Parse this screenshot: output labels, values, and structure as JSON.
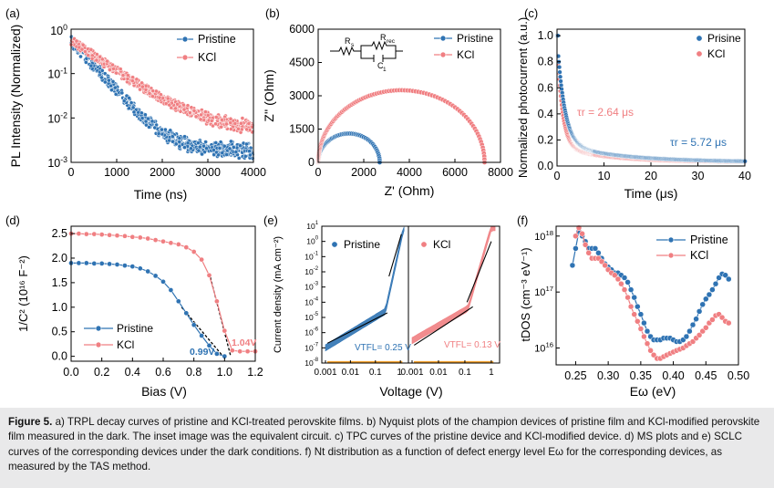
{
  "colors": {
    "pristine": "#2f73b3",
    "kcl": "#f07f82",
    "fit": "#000000",
    "accent_orange": "#f2a12e"
  },
  "chart_data": [
    {
      "panel": "(a)",
      "type": "scatter",
      "xlabel": "Time (ns)",
      "ylabel": "PL Intensity (Normalized)",
      "xlim": [
        0,
        4000
      ],
      "ylim": [
        0.001,
        1
      ],
      "yscale": "log",
      "xticks": [
        "0",
        "1000",
        "2000",
        "3000",
        "4000"
      ],
      "yticks": [
        "10",
        "10",
        "10",
        "10"
      ],
      "ytick_exps": [
        "0",
        "-1",
        "-2",
        "-3"
      ],
      "series": [
        {
          "name": "Pristine",
          "tau_ns": 380,
          "floor": 0.0015,
          "x_end": 4000
        },
        {
          "name": "KCl",
          "tau_ns": 620,
          "floor": 0.0045,
          "x_end": 4000
        }
      ]
    },
    {
      "panel": "(b)",
      "type": "scatter",
      "xlabel": "Z' (Ohm)",
      "ylabel": "Z'' (Ohm)",
      "xlim": [
        0,
        8000
      ],
      "ylim": [
        0,
        6000
      ],
      "xticks": [
        "0",
        "2000",
        "4000",
        "6000",
        "8000"
      ],
      "yticks": [
        "0",
        "1500",
        "3000",
        "4500",
        "6000"
      ],
      "inset_labels": [
        "R",
        "s",
        "R",
        "rec",
        "C",
        "1"
      ],
      "series": [
        {
          "name": "Pristine",
          "arc_from": 0,
          "arc_to": 2700,
          "peak": 1300
        },
        {
          "name": "KCl",
          "arc_from": 0,
          "arc_to": 7300,
          "peak": 3250
        }
      ]
    },
    {
      "panel": "(c)",
      "type": "scatter",
      "xlabel": "Time (μs)",
      "ylabel": "Normalized photocurrent (a.u.)",
      "xlim": [
        0,
        40
      ],
      "ylim": [
        0,
        1.05
      ],
      "xticks": [
        "0",
        "10",
        "20",
        "30",
        "40"
      ],
      "yticks": [
        "0.0",
        "0.2",
        "0.4",
        "0.6",
        "0.8",
        "1.0"
      ],
      "annotations": [
        "τr = 2.64 μs",
        "τr = 5.72 μs"
      ],
      "series": [
        {
          "name": "Prisine",
          "tau_us": 5.72
        },
        {
          "name": "KCl",
          "tau_us": 2.64
        }
      ]
    },
    {
      "panel": "(d)",
      "type": "line",
      "xlabel": "Bias (V)",
      "ylabel": "1/C² (10¹⁶ F⁻²)",
      "xlim": [
        0,
        1.2
      ],
      "ylim": [
        -0.1,
        2.65
      ],
      "xticks": [
        "0.0",
        "0.2",
        "0.4",
        "0.6",
        "0.8",
        "1.0",
        "1.2"
      ],
      "yticks": [
        "0.0",
        "0.5",
        "1.0",
        "1.5",
        "2.0",
        "2.5"
      ],
      "annotations": [
        "0.99V",
        "1.04V"
      ],
      "series": [
        {
          "name": "Pristine",
          "x": [
            0.0,
            0.05,
            0.1,
            0.15,
            0.2,
            0.25,
            0.3,
            0.35,
            0.4,
            0.45,
            0.5,
            0.55,
            0.6,
            0.65,
            0.7,
            0.75,
            0.8,
            0.85,
            0.9,
            0.95,
            1.0
          ],
          "y": [
            1.9,
            1.9,
            1.9,
            1.89,
            1.89,
            1.88,
            1.87,
            1.85,
            1.83,
            1.79,
            1.73,
            1.64,
            1.52,
            1.35,
            1.12,
            0.88,
            0.64,
            0.42,
            0.22,
            0.05,
            0.0
          ]
        },
        {
          "name": "KCl",
          "x": [
            0.0,
            0.05,
            0.1,
            0.15,
            0.2,
            0.25,
            0.3,
            0.35,
            0.4,
            0.45,
            0.5,
            0.55,
            0.6,
            0.65,
            0.7,
            0.75,
            0.8,
            0.85,
            0.9,
            0.95,
            1.0,
            1.05,
            1.1,
            1.15,
            1.2
          ],
          "y": [
            2.5,
            2.5,
            2.49,
            2.49,
            2.48,
            2.47,
            2.46,
            2.45,
            2.43,
            2.42,
            2.4,
            2.37,
            2.34,
            2.31,
            2.28,
            2.22,
            2.13,
            1.97,
            1.65,
            1.12,
            0.52,
            0.12,
            0.1,
            0.1,
            0.1
          ]
        }
      ]
    },
    {
      "panel": "(e)",
      "type": "line",
      "xlabel": "Voltage (V)",
      "ylabel": "Current density (mA cm⁻²)",
      "xlim": [
        0.001,
        1.5
      ],
      "ylim": [
        1e-08,
        10
      ],
      "xscale": "log",
      "yscale": "log",
      "xticks_left": [
        "0.001",
        "0.01",
        "0.1",
        "1"
      ],
      "xticks_right": [
        "0.001",
        "0.01",
        "0.1",
        "1"
      ],
      "yticks": [
        "10",
        "10",
        "10",
        "10",
        "10",
        "10",
        "10",
        "10",
        "10",
        "10"
      ],
      "ytick_exps": [
        "1",
        "0",
        "-1",
        "-2",
        "-3",
        "-4",
        "-5",
        "-6",
        "-7",
        "-8"
      ],
      "annotations": [
        "VTFL= 0.25 V",
        "VTFL= 0.13 V"
      ],
      "series": [
        {
          "name": "Pristine",
          "ohmic_slope": 1.0,
          "vtfl": 0.25
        },
        {
          "name": "KCl",
          "ohmic_slope": 1.0,
          "vtfl": 0.13
        }
      ]
    },
    {
      "panel": "(f)",
      "type": "line",
      "xlabel": "Eω (eV)",
      "ylabel": "tDOS (cm⁻³ eV⁻¹)",
      "xlim": [
        0.22,
        0.5
      ],
      "ylim": [
        5000000000000000.0,
        1.5e+18
      ],
      "yscale": "log",
      "xticks": [
        "0.25",
        "0.30",
        "0.35",
        "0.40",
        "0.45",
        "0.50"
      ],
      "yticks": [
        "10",
        "10",
        "10"
      ],
      "ytick_exps": [
        "18",
        "17",
        "16"
      ],
      "series": [
        {
          "name": "Pristine",
          "x": [
            0.245,
            0.25,
            0.255,
            0.26,
            0.265,
            0.27,
            0.275,
            0.28,
            0.285,
            0.29,
            0.295,
            0.3,
            0.305,
            0.31,
            0.315,
            0.32,
            0.325,
            0.33,
            0.335,
            0.34,
            0.345,
            0.35,
            0.355,
            0.36,
            0.365,
            0.37,
            0.375,
            0.38,
            0.385,
            0.39,
            0.395,
            0.4,
            0.405,
            0.41,
            0.415,
            0.42,
            0.425,
            0.43,
            0.435,
            0.44,
            0.445,
            0.45,
            0.455,
            0.46,
            0.465,
            0.47,
            0.475,
            0.48,
            0.485
          ],
          "y": [
            3e+17,
            6e+17,
            1.2e+18,
            1e+18,
            8e+17,
            6e+17,
            6e+17,
            6e+17,
            5e+17,
            4e+17,
            3.2e+17,
            2.8e+17,
            2.5e+17,
            2.2e+17,
            2.2e+17,
            2e+17,
            1.8e+17,
            1.5e+17,
            1.1e+17,
            8e+16,
            5.5e+16,
            4e+16,
            2.8e+16,
            2e+16,
            1.6e+16,
            1.4e+16,
            1.4e+16,
            1.4e+16,
            1.5e+16,
            1.5e+16,
            1.5e+16,
            1.4e+16,
            1.3e+16,
            1.3e+16,
            1.4e+16,
            1.6e+16,
            2e+16,
            2.6e+16,
            3.3e+16,
            4.5e+16,
            6e+16,
            7.5e+16,
            9e+16,
            1.1e+17,
            1.4e+17,
            1.8e+17,
            2.1e+17,
            2e+17,
            1.7e+17
          ]
        },
        {
          "name": "KCl",
          "x": [
            0.25,
            0.255,
            0.26,
            0.265,
            0.27,
            0.275,
            0.28,
            0.285,
            0.29,
            0.295,
            0.3,
            0.305,
            0.31,
            0.315,
            0.32,
            0.325,
            0.33,
            0.335,
            0.34,
            0.345,
            0.35,
            0.355,
            0.36,
            0.365,
            0.37,
            0.375,
            0.38,
            0.385,
            0.39,
            0.395,
            0.4,
            0.405,
            0.41,
            0.415,
            0.42,
            0.425,
            0.43,
            0.435,
            0.44,
            0.445,
            0.45,
            0.455,
            0.46,
            0.465,
            0.47,
            0.475,
            0.48,
            0.485
          ],
          "y": [
            1e+18,
            1.4e+18,
            1.1e+18,
            7e+17,
            5e+17,
            4e+17,
            4e+17,
            4e+17,
            3.5e+17,
            3e+17,
            2.5e+17,
            2.2e+17,
            2e+17,
            1.7e+17,
            1.4e+17,
            1.1e+17,
            8e+16,
            5.5e+16,
            4e+16,
            3e+16,
            2.2e+16,
            1.6e+16,
            1.2e+16,
            9000000000000000.0,
            7500000000000000.0,
            6500000000000000.0,
            6500000000000000.0,
            7000000000000000.0,
            7500000000000000.0,
            8000000000000000.0,
            8500000000000000.0,
            9000000000000000.0,
            9500000000000000.0,
            1e+16,
            1.1e+16,
            1.2e+16,
            1.3e+16,
            1.5e+16,
            1.7e+16,
            2e+16,
            2.3e+16,
            2.8e+16,
            3.2e+16,
            3.8e+16,
            4e+16,
            3.5e+16,
            3e+16,
            2.8e+16
          ]
        }
      ]
    }
  ],
  "caption": {
    "lead": "Figure 5.",
    "text": "a) TRPL decay curves of pristine and KCl-treated perovskite films. b) Nyquist plots of the champion devices of pristine film and KCl-modified perovskite film measured in the dark. The inset image was the equivalent circuit. c) TPC curves of the pristine device and KCl-modified device. d) MS plots and e) SCLC curves of the corresponding devices under the dark conditions. f) Nt distribution as a function of defect energy level Eω for the corresponding devices, as measured by the TAS method."
  }
}
